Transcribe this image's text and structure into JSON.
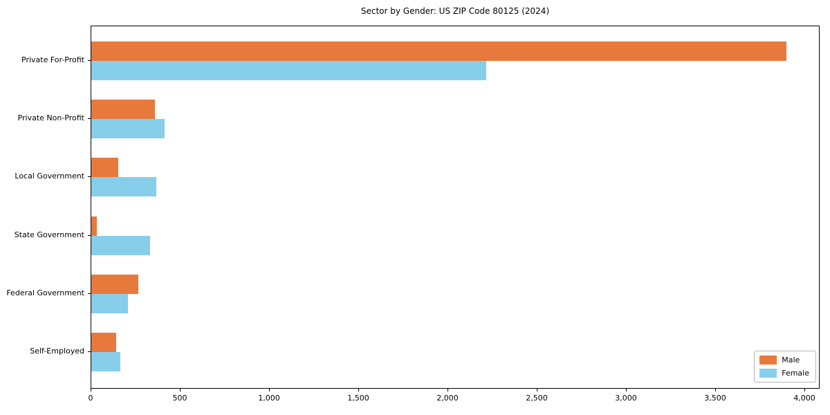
{
  "chart_data": {
    "type": "bar",
    "orientation": "horizontal",
    "title": "Sector by Gender: US ZIP Code 80125 (2024)",
    "categories": [
      "Private For-Profit",
      "Private Non-Profit",
      "Local Government",
      "State Government",
      "Federal Government",
      "Self-Employed"
    ],
    "series": [
      {
        "name": "Male",
        "color": "#E8793D",
        "values": [
          3895,
          358,
          150,
          30,
          264,
          140
        ]
      },
      {
        "name": "Female",
        "color": "#87CEEB",
        "values": [
          2212,
          410,
          365,
          328,
          207,
          164
        ]
      }
    ],
    "xlabel": "",
    "ylabel": "",
    "xlim": [
      0,
      4085
    ],
    "xticks": [
      0,
      500,
      1000,
      1500,
      2000,
      2500,
      3000,
      3500,
      4000
    ],
    "xtick_labels": [
      "0",
      "500",
      "1,000",
      "1,500",
      "2,000",
      "2,500",
      "3,000",
      "3,500",
      "4,000"
    ],
    "grid": false,
    "frame": "full-box",
    "legend": {
      "position": "lower right",
      "entries": [
        "Male",
        "Female"
      ]
    }
  }
}
